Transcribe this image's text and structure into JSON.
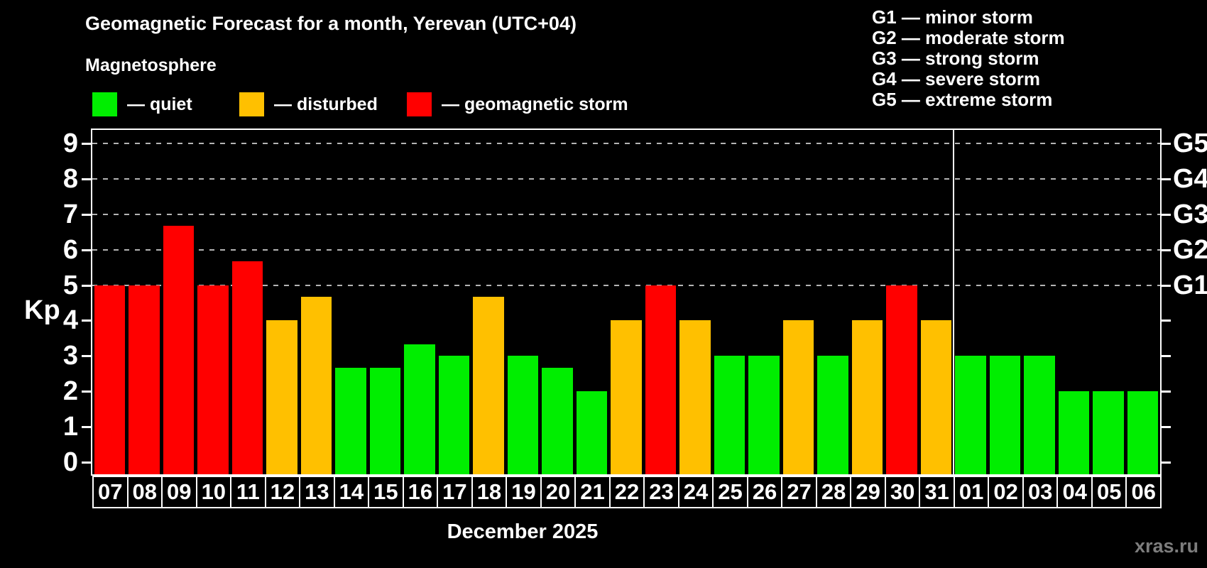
{
  "header": {
    "title": "Geomagnetic Forecast for a month, Yerevan (UTC+04)",
    "subtitle": "Magnetosphere",
    "legend": [
      {
        "name": "quiet",
        "label": "— quiet",
        "color": "#00ee00"
      },
      {
        "name": "disturbed",
        "label": "— disturbed",
        "color": "#ffc000"
      },
      {
        "name": "storm",
        "label": "— geomagnetic storm",
        "color": "#ff0000"
      }
    ]
  },
  "g_legend": [
    "G1 — minor storm",
    "G2 — moderate storm",
    "G3 — strong storm",
    "G4 — severe storm",
    "G5 — extreme storm"
  ],
  "chart_data": {
    "type": "bar",
    "title": "Geomagnetic Forecast for a month, Yerevan (UTC+04)",
    "ylabel": "Kp",
    "xlabel": "December 2025",
    "ylim": [
      0,
      9
    ],
    "left_ticks": [
      0,
      1,
      2,
      3,
      4,
      5,
      6,
      7,
      8,
      9
    ],
    "right_tick_labels": [
      {
        "value": 5,
        "label": "G1"
      },
      {
        "value": 6,
        "label": "G2"
      },
      {
        "value": 7,
        "label": "G3"
      },
      {
        "value": 8,
        "label": "G4"
      },
      {
        "value": 9,
        "label": "G5"
      }
    ],
    "grid_levels": [
      5,
      6,
      7,
      8,
      9
    ],
    "grid_style": "dashed",
    "legend_position": "top",
    "categories": [
      "07",
      "08",
      "09",
      "10",
      "11",
      "12",
      "13",
      "14",
      "15",
      "16",
      "17",
      "18",
      "19",
      "20",
      "21",
      "22",
      "23",
      "24",
      "25",
      "26",
      "27",
      "28",
      "29",
      "30",
      "31",
      "01",
      "02",
      "03",
      "04",
      "05",
      "06"
    ],
    "values": [
      5,
      5,
      6.67,
      5,
      5.67,
      4,
      4.67,
      2.67,
      2.67,
      3.33,
      3,
      4.67,
      3,
      2.67,
      2,
      4,
      5,
      4,
      3,
      3,
      4,
      3,
      4,
      5,
      4,
      3,
      3,
      3,
      2,
      2,
      2
    ],
    "statuses": [
      "storm",
      "storm",
      "storm",
      "storm",
      "storm",
      "disturbed",
      "disturbed",
      "quiet",
      "quiet",
      "quiet",
      "quiet",
      "disturbed",
      "quiet",
      "quiet",
      "quiet",
      "disturbed",
      "storm",
      "disturbed",
      "quiet",
      "quiet",
      "disturbed",
      "quiet",
      "disturbed",
      "storm",
      "disturbed",
      "quiet",
      "quiet",
      "quiet",
      "quiet",
      "quiet",
      "quiet"
    ],
    "status_colors": {
      "quiet": "#00ee00",
      "disturbed": "#ffc000",
      "storm": "#ff0000"
    },
    "month_separator_after": "31"
  },
  "footer": {
    "xaxis_title": "December 2025",
    "watermark": "xras.ru"
  }
}
